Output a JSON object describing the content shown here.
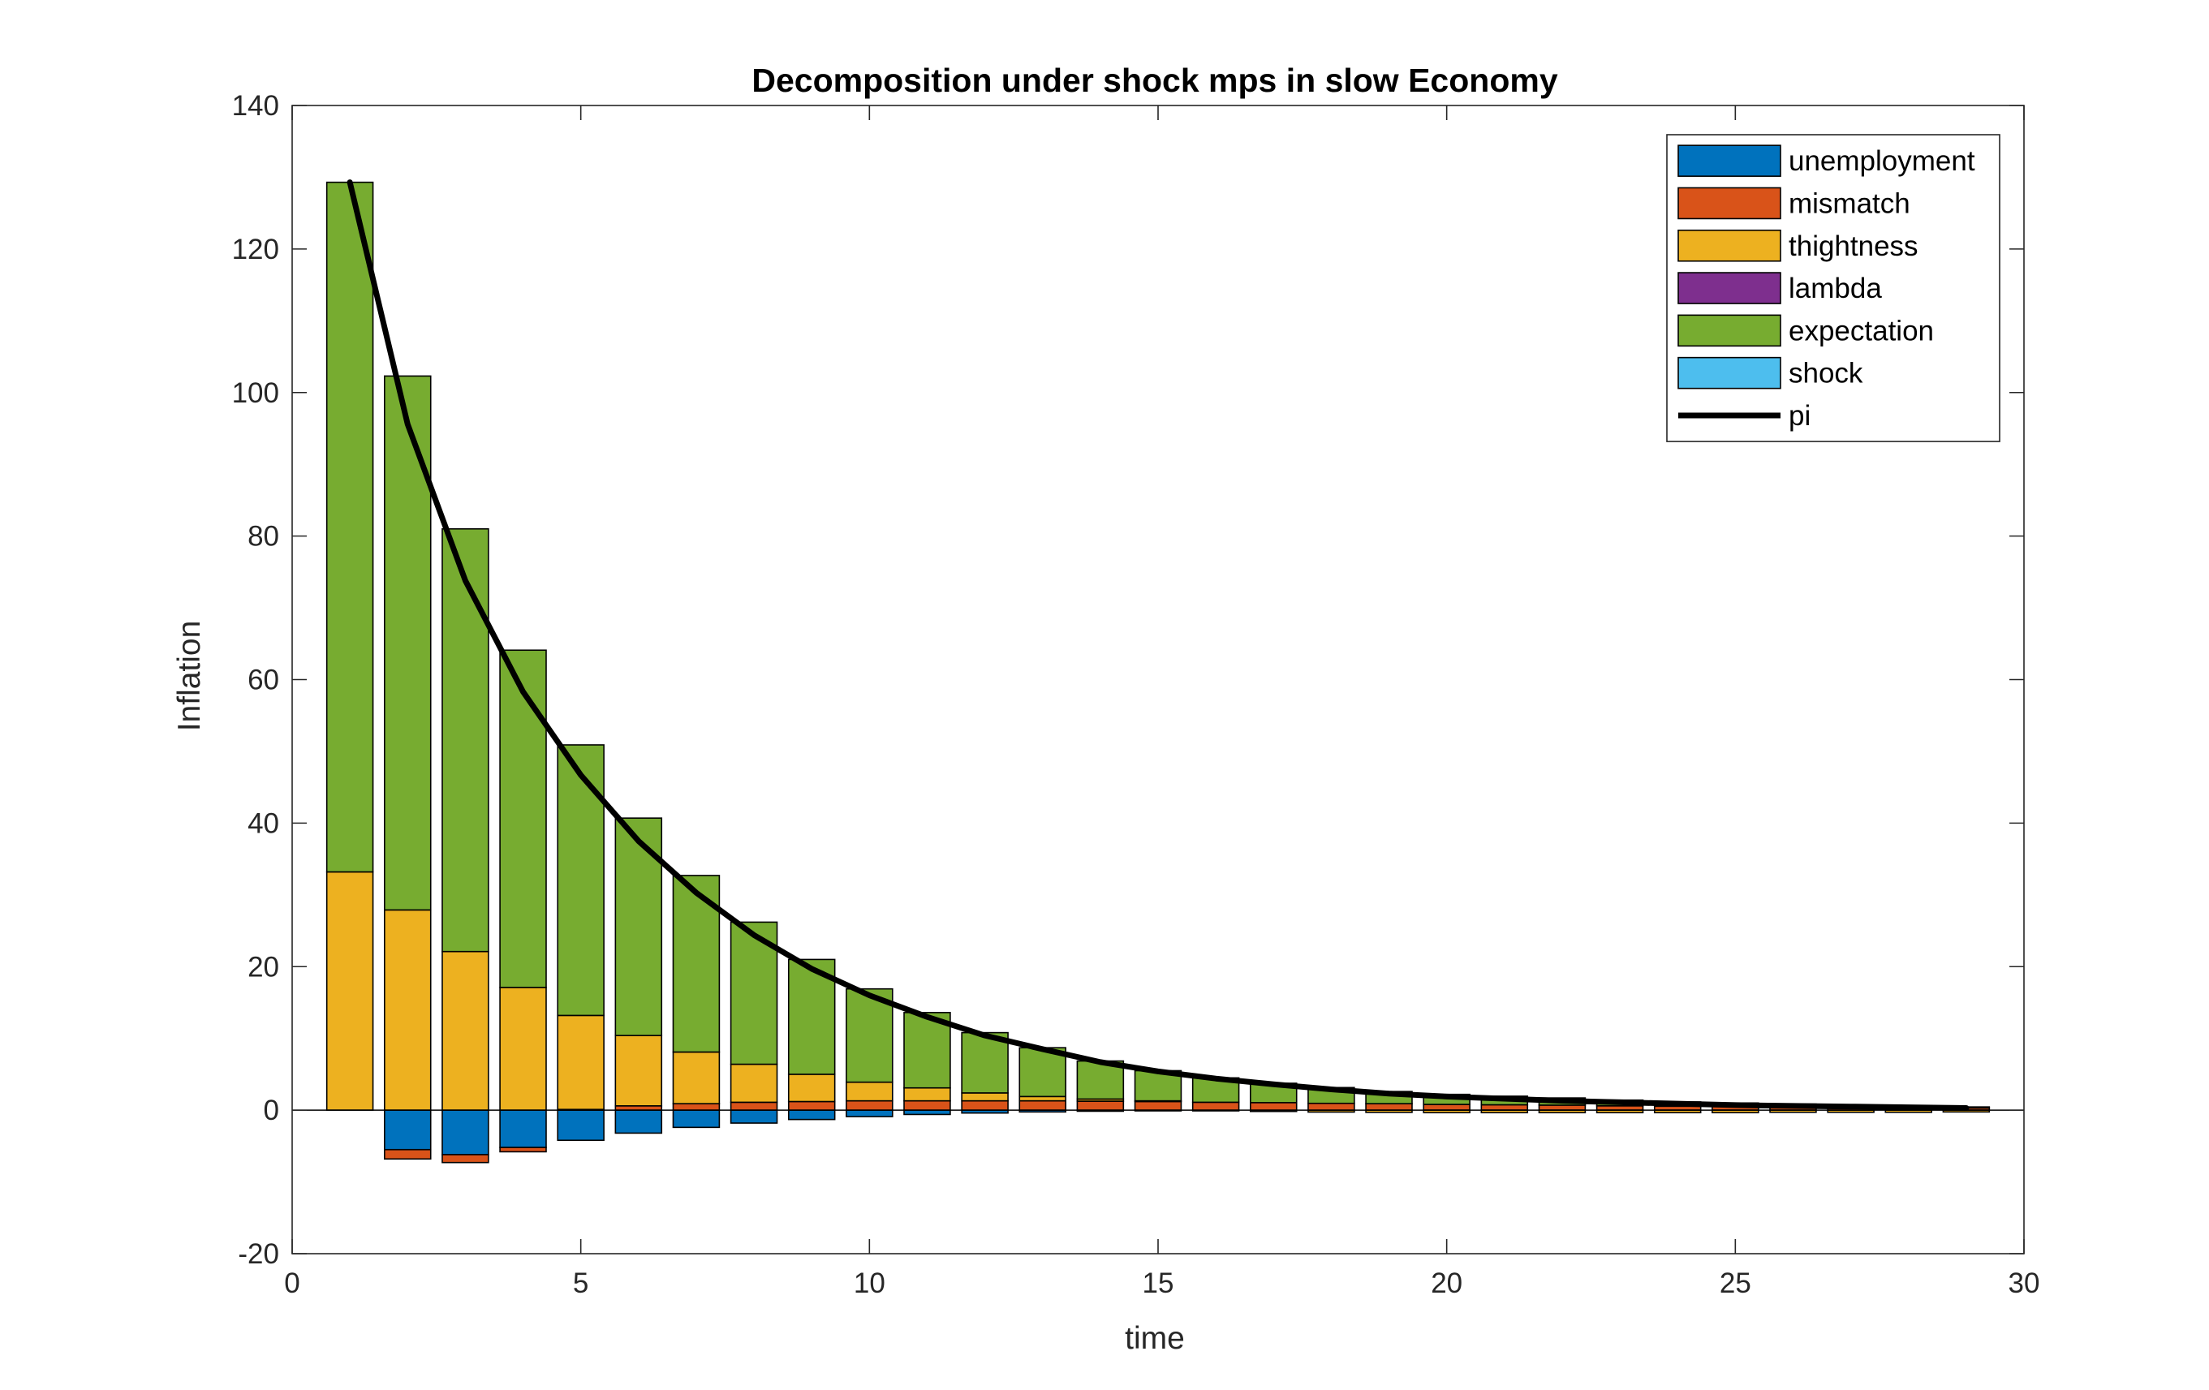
{
  "chart_data": {
    "type": "bar",
    "stacked": true,
    "title": "Decomposition under shock mps in slow Economy",
    "xlabel": "time",
    "ylabel": "Inflation",
    "xlim": [
      0,
      30
    ],
    "ylim": [
      -20,
      140
    ],
    "xticks": [
      0,
      5,
      10,
      15,
      20,
      25,
      30
    ],
    "yticks": [
      -20,
      0,
      20,
      40,
      60,
      80,
      100,
      120,
      140
    ],
    "grid": false,
    "legend_position": "top-right",
    "x": [
      1,
      2,
      3,
      4,
      5,
      6,
      7,
      8,
      9,
      10,
      11,
      12,
      13,
      14,
      15,
      16,
      17,
      18,
      19,
      20,
      21,
      22,
      23,
      24,
      25,
      26,
      27,
      28,
      29
    ],
    "series": [
      {
        "name": "unemployment",
        "color": "#0072BD",
        "values": [
          0,
          -5.5,
          -6.2,
          -5.2,
          -4.2,
          -3.2,
          -2.4,
          -1.8,
          -1.3,
          -0.9,
          -0.6,
          -0.4,
          -0.25,
          -0.15,
          -0.1,
          -0.05,
          -0.03,
          -0.02,
          -0.01,
          0,
          0,
          0,
          0,
          0,
          0,
          0,
          0,
          0,
          0
        ]
      },
      {
        "name": "mismatch",
        "color": "#D95319",
        "values": [
          0,
          -1.3,
          -1.1,
          -0.6,
          0.1,
          0.6,
          0.9,
          1.1,
          1.2,
          1.3,
          1.3,
          1.3,
          1.3,
          1.25,
          1.2,
          1.1,
          1.05,
          0.95,
          0.9,
          0.8,
          0.75,
          0.7,
          0.6,
          0.55,
          0.5,
          0.45,
          0.4,
          0.35,
          0.3
        ]
      },
      {
        "name": "thightness",
        "color": "#EDB120",
        "values": [
          33.2,
          27.9,
          22.1,
          17.1,
          13.1,
          9.8,
          7.2,
          5.3,
          3.8,
          2.6,
          1.8,
          1.1,
          0.6,
          0.3,
          0.1,
          -0.05,
          -0.15,
          -0.25,
          -0.3,
          -0.35,
          -0.35,
          -0.35,
          -0.35,
          -0.35,
          -0.35,
          -0.3,
          -0.3,
          -0.3,
          -0.25
        ]
      },
      {
        "name": "lambda",
        "color": "#7E2F8E",
        "values": [
          0,
          0,
          0,
          0,
          0,
          0,
          0,
          0,
          0,
          0,
          0,
          0,
          0,
          0,
          0,
          0,
          0,
          0,
          0,
          0,
          0,
          0,
          0,
          0,
          0,
          0,
          0,
          0,
          0
        ]
      },
      {
        "name": "expectation",
        "color": "#77AC30",
        "values": [
          96.1,
          74.4,
          58.9,
          47.0,
          37.7,
          30.3,
          24.6,
          19.8,
          16.0,
          13.0,
          10.5,
          8.4,
          6.8,
          5.3,
          4.2,
          3.4,
          2.7,
          2.2,
          1.7,
          1.4,
          1.2,
          1.0,
          0.8,
          0.6,
          0.5,
          0.4,
          0.3,
          0.2,
          0.15
        ]
      },
      {
        "name": "shock",
        "color": "#4DBEEE",
        "values": [
          0,
          0,
          0,
          0,
          0,
          0,
          0,
          0,
          0,
          0,
          0,
          0,
          0,
          0,
          0,
          0,
          0,
          0,
          0,
          0,
          0,
          0,
          0,
          0,
          0,
          0,
          0,
          0,
          0
        ]
      }
    ],
    "line": {
      "name": "pi",
      "color": "#000000",
      "x": [
        1,
        2,
        3,
        4,
        5,
        6,
        7,
        8,
        9,
        10,
        11,
        12,
        13,
        14,
        15,
        16,
        17,
        18,
        19,
        20,
        21,
        22,
        23,
        24,
        25,
        26,
        27,
        28,
        29
      ],
      "values": [
        129.3,
        95.6,
        73.8,
        58.3,
        46.7,
        37.5,
        30.3,
        24.4,
        19.7,
        16.0,
        13.0,
        10.4,
        8.5,
        6.7,
        5.4,
        4.4,
        3.6,
        2.9,
        2.3,
        1.9,
        1.6,
        1.3,
        1.1,
        0.9,
        0.7,
        0.6,
        0.5,
        0.4,
        0.3
      ]
    }
  }
}
